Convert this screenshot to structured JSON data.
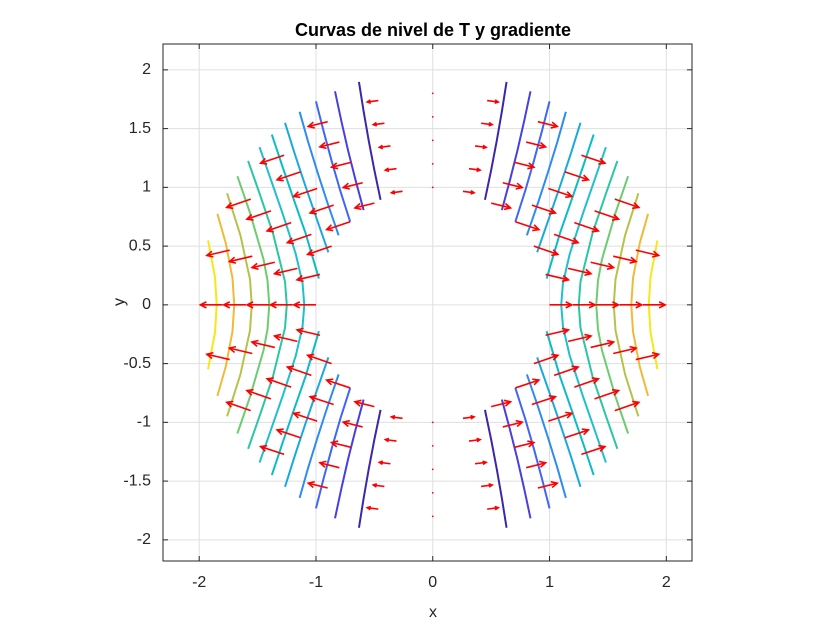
{
  "chart_data": {
    "type": "contour-quiver",
    "title": "Curvas de nivel de T y gradiente",
    "x_label": "x",
    "y_label": "y",
    "xlim": [
      -2.31,
      2.22
    ],
    "ylim": [
      -2.18,
      2.22
    ],
    "xticks": [
      -2,
      -1,
      0,
      1,
      2
    ],
    "yticks": [
      -2,
      -1.5,
      -1,
      -0.5,
      0,
      0.5,
      1,
      1.5,
      2
    ],
    "grid": true,
    "contours": [
      {
        "level": 0.2,
        "color": "#3e26a8",
        "x": [
          0.447,
          0.5,
          0.548,
          0.592,
          0.632
        ],
        "y": [
          0.894,
          1.146,
          1.396,
          1.647,
          1.897
        ]
      },
      {
        "level": 0.35,
        "color": "#4740e0",
        "x": [
          0.592,
          0.661,
          0.725,
          0.783,
          0.837
        ],
        "y": [
          0.806,
          1.061,
          1.313,
          1.565,
          1.817
        ]
      },
      {
        "level": 0.5,
        "color": "#4166f4",
        "x": [
          0.707,
          0.791,
          0.866,
          0.935,
          1
        ],
        "y": [
          0.707,
          0.968,
          1.225,
          1.479,
          1.732
        ]
      },
      {
        "level": 0.65,
        "color": "#2d8cf0",
        "x": [
          0.806,
          0.901,
          0.987,
          1.067,
          1.14
        ],
        "y": [
          0.592,
          0.866,
          1.129,
          1.387,
          1.643
        ]
      },
      {
        "level": 0.8,
        "color": "#1aa9df",
        "x": [
          0.894,
          1,
          1.095,
          1.183,
          1.265
        ],
        "y": [
          0.447,
          0.75,
          1.025,
          1.289,
          1.549
        ]
      },
      {
        "level": 0.95,
        "color": "#0bbcc8",
        "x": [
          0.975,
          1.09,
          1.194,
          1.289,
          1.378
        ],
        "y": [
          0.224,
          0.612,
          0.908,
          1.183,
          1.449
        ]
      },
      {
        "level": 1.1,
        "color": "#1fbfd0",
        "x": [
          1.1,
          1.115,
          1.173,
          1.285,
          1.387,
          1.483
        ],
        "y": [
          0,
          0.184,
          0.433,
          0.775,
          1.067,
          1.342
        ]
      },
      {
        "level": 1.25,
        "color": "#2bc6a3",
        "x": [
          1.25,
          1.265,
          1.369,
          1.479,
          1.581
        ],
        "y": [
          0,
          0.196,
          0.612,
          0.935,
          1.225
        ]
      },
      {
        "level": 1.4,
        "color": "#6dcc71",
        "x": [
          1.4,
          1.415,
          1.449,
          1.565,
          1.673
        ],
        "y": [
          0,
          0.207,
          0.387,
          0.783,
          1.095
        ]
      },
      {
        "level": 1.55,
        "color": "#b4c34a",
        "x": [
          1.55,
          1.565,
          1.647,
          1.761
        ],
        "y": [
          0,
          0.218,
          0.592,
          0.949
        ]
      },
      {
        "level": 1.7,
        "color": "#f0b93a",
        "x": [
          1.7,
          1.715,
          1.773,
          1.844
        ],
        "y": [
          0,
          0.228,
          0.527,
          0.775
        ]
      },
      {
        "level": 1.85,
        "color": "#f9e619",
        "x": [
          1.85,
          1.865,
          1.924
        ],
        "y": [
          0,
          0.237,
          0.548
        ]
      }
    ],
    "quiver": {
      "color": "#ff0000",
      "r": [
        1,
        1.2,
        1.4,
        1.6,
        1.8
      ],
      "theta": [
        0,
        15,
        30,
        45,
        60,
        75,
        90,
        105,
        120,
        135,
        150,
        165,
        180,
        195,
        210,
        225,
        240,
        255,
        270,
        285,
        300,
        315,
        330,
        345
      ],
      "u": [
        1,
        1.0306,
        1.0825,
        1.0607,
        0.875,
        0.5003,
        0,
        -0.5003,
        -0.875,
        -1.0607,
        -1.0825,
        -1.0306,
        -1,
        -1.0306,
        -1.0825,
        -1.0607,
        -0.875,
        -0.5003,
        0,
        0.5003,
        0.875,
        1.0607,
        1.0825,
        1.0306
      ],
      "v": [
        0,
        -0.2415,
        -0.375,
        -0.3536,
        -0.2165,
        -0.0647,
        0,
        -0.0647,
        -0.2165,
        -0.3536,
        -0.375,
        -0.2415,
        0,
        0.2415,
        0.375,
        0.3536,
        0.2165,
        0.0647,
        0,
        0.0647,
        0.2165,
        0.3536,
        0.375,
        0.2415
      ]
    }
  }
}
